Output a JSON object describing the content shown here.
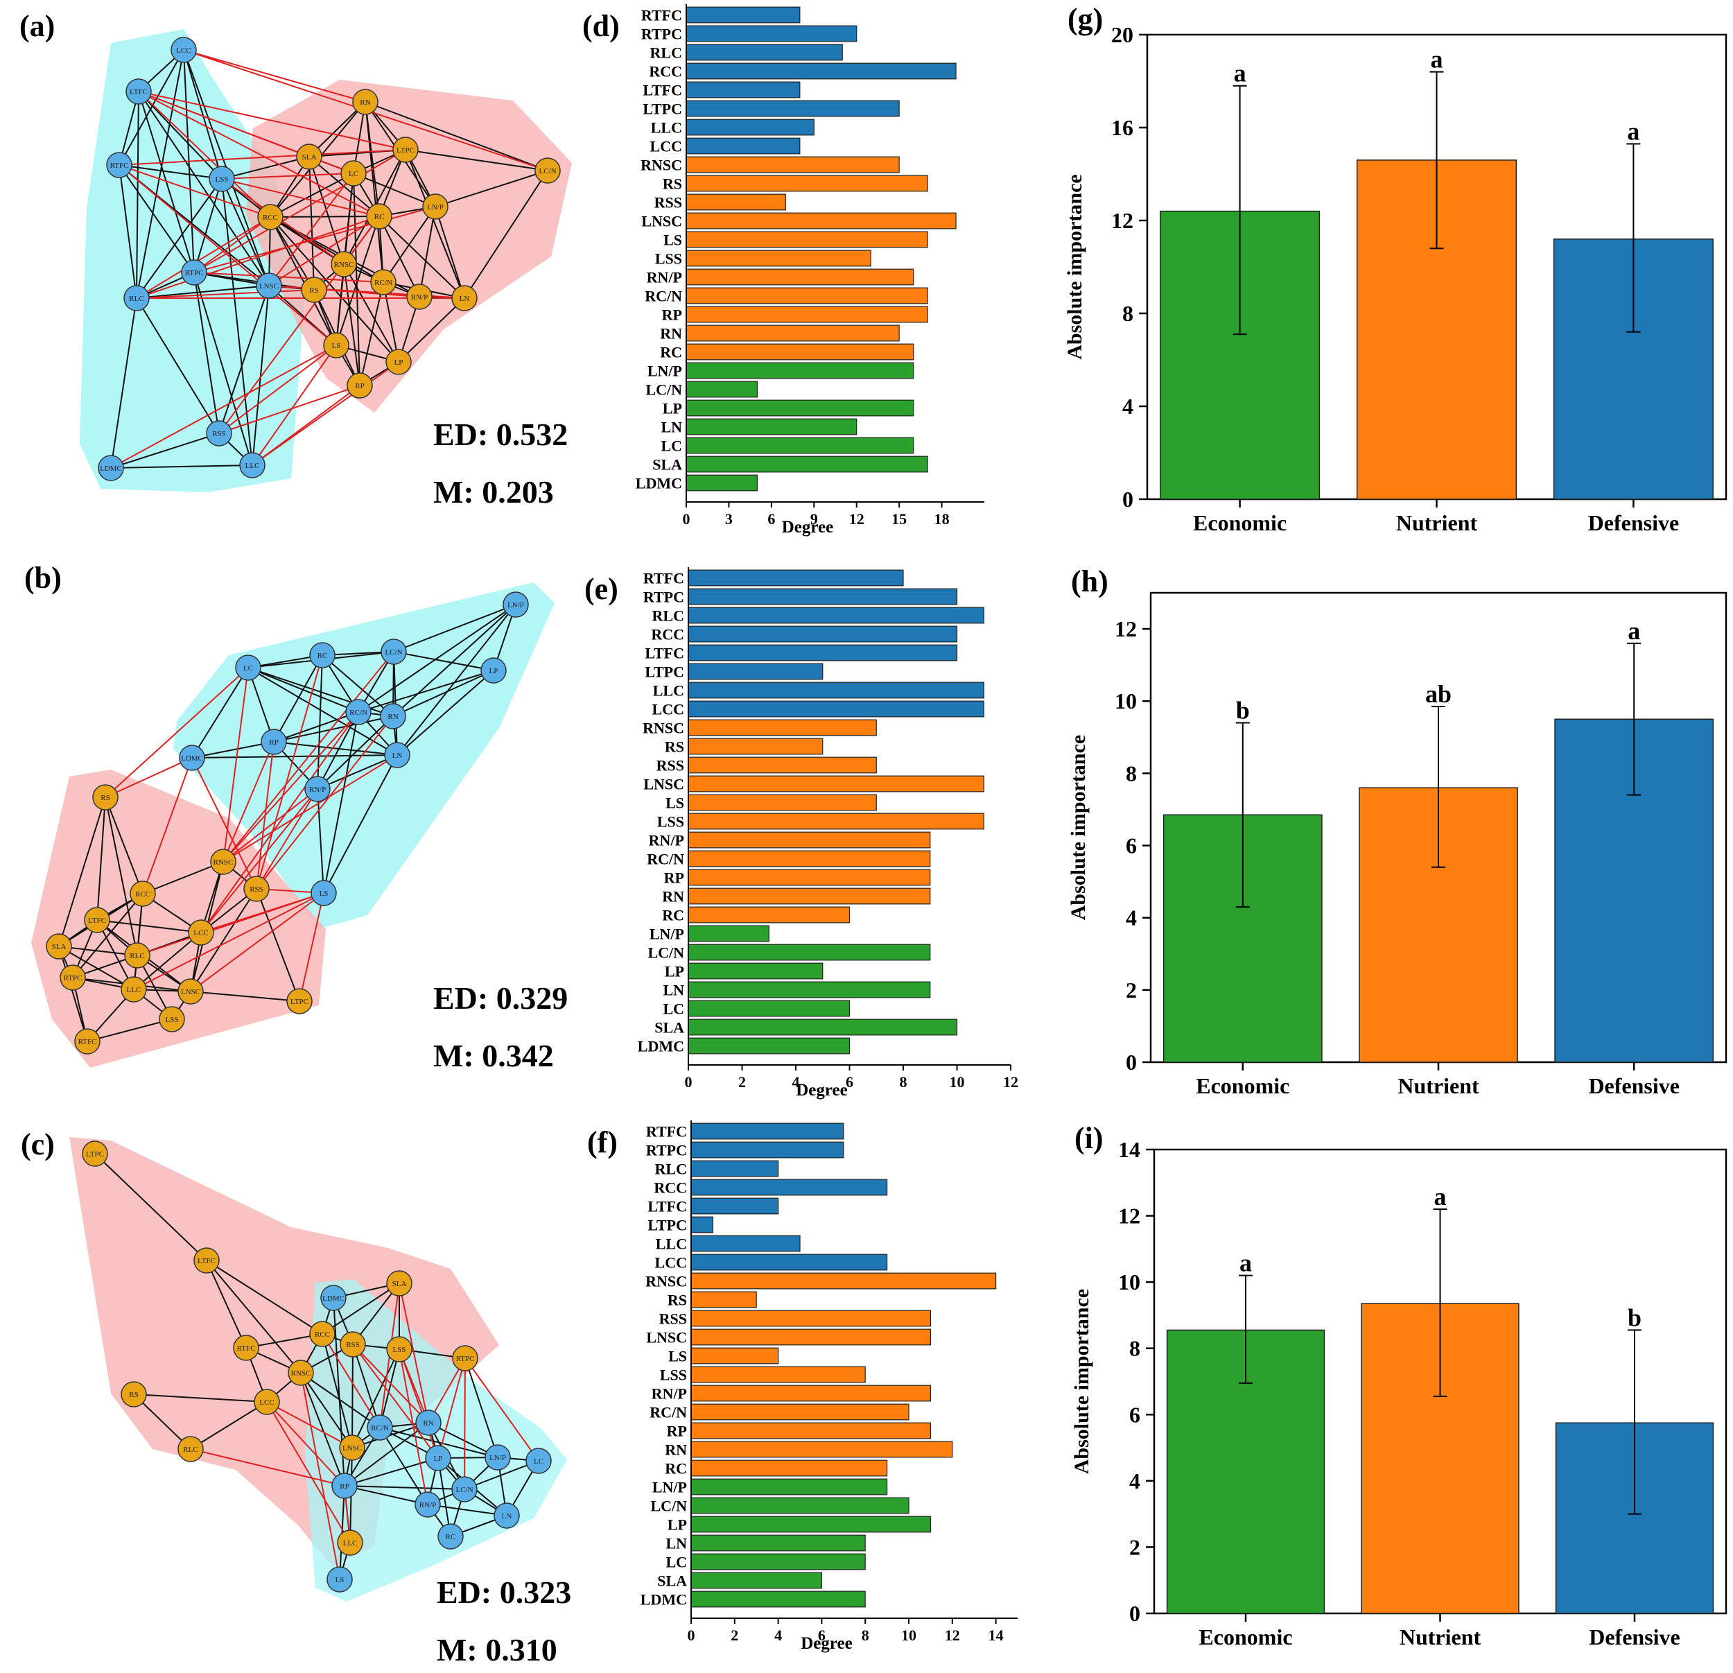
{
  "colors": {
    "economic": "#2ca02c",
    "nutrient": "#ff7f0e",
    "defensive": "#1f77b4",
    "node_blue": "#5aaee8",
    "node_orange": "#e8a317",
    "hull_cyan": "#a6f5f5",
    "hull_red": "#f8b4b4",
    "edge_pos": "#111111",
    "edge_neg": "#e02020"
  },
  "traits": [
    "RTFC",
    "RTPC",
    "RLC",
    "RCC",
    "LTFC",
    "LTPC",
    "LLC",
    "LCC",
    "RNSC",
    "RS",
    "RSS",
    "LNSC",
    "LS",
    "LSS",
    "RN/P",
    "RC/N",
    "RP",
    "RN",
    "RC",
    "LN/P",
    "LC/N",
    "LP",
    "LN",
    "LC",
    "SLA",
    "LDMC"
  ],
  "trait_groups": [
    "defensive",
    "defensive",
    "defensive",
    "defensive",
    "defensive",
    "defensive",
    "defensive",
    "defensive",
    "nutrient",
    "nutrient",
    "nutrient",
    "nutrient",
    "nutrient",
    "nutrient",
    "nutrient",
    "nutrient",
    "nutrient",
    "nutrient",
    "nutrient",
    "economic",
    "economic",
    "economic",
    "economic",
    "economic",
    "economic",
    "economic"
  ],
  "networks": [
    {
      "label": "(a)",
      "ed_text": "ED: 0.532",
      "m_text": "M: 0.203"
    },
    {
      "label": "(b)",
      "ed_text": "ED: 0.329",
      "m_text": "M: 0.342"
    },
    {
      "label": "(c)",
      "ed_text": "ED: 0.323",
      "m_text": "M: 0.310"
    }
  ],
  "chart_data": [
    {
      "type": "bar",
      "orientation": "horizontal",
      "panel": "(d)",
      "xlabel": "Degree",
      "xlim": [
        0,
        21
      ],
      "xticks": [
        0,
        3,
        6,
        9,
        12,
        15,
        18
      ],
      "values": [
        8,
        12,
        11,
        19,
        8,
        15,
        9,
        8,
        15,
        17,
        7,
        19,
        17,
        13,
        16,
        17,
        17,
        15,
        16,
        16,
        5,
        16,
        12,
        16,
        17,
        5
      ]
    },
    {
      "type": "bar",
      "orientation": "horizontal",
      "panel": "(e)",
      "xlabel": "Degree",
      "xlim": [
        0,
        12
      ],
      "xticks": [
        0,
        2,
        4,
        6,
        8,
        10,
        12
      ],
      "values": [
        8,
        10,
        11,
        10,
        10,
        5,
        11,
        11,
        7,
        5,
        7,
        11,
        7,
        11,
        9,
        9,
        9,
        9,
        6,
        3,
        9,
        5,
        9,
        6,
        10,
        6
      ]
    },
    {
      "type": "bar",
      "orientation": "horizontal",
      "panel": "(f)",
      "xlabel": "Degree",
      "xlim": [
        0,
        15
      ],
      "xticks": [
        0,
        2,
        4,
        6,
        8,
        10,
        12,
        14
      ],
      "values": [
        7,
        7,
        4,
        9,
        4,
        1,
        5,
        9,
        14,
        3,
        11,
        11,
        4,
        8,
        11,
        10,
        11,
        12,
        9,
        9,
        10,
        11,
        8,
        8,
        6,
        8
      ]
    },
    {
      "type": "bar",
      "panel": "(g)",
      "ylabel": "Absolute importance",
      "ylim": [
        0,
        20
      ],
      "yticks": [
        0,
        4,
        8,
        12,
        16,
        20
      ],
      "categories": [
        "Economic",
        "Nutrient",
        "Defensive"
      ],
      "values": [
        12.4,
        14.6,
        11.2
      ],
      "err_low": [
        7.1,
        10.8,
        7.2
      ],
      "err_high": [
        17.8,
        18.4,
        15.3
      ],
      "letters": [
        "a",
        "a",
        "a"
      ]
    },
    {
      "type": "bar",
      "panel": "(h)",
      "ylabel": "Absolute importance",
      "ylim": [
        0,
        13
      ],
      "yticks": [
        0,
        2,
        4,
        6,
        8,
        10,
        12
      ],
      "categories": [
        "Economic",
        "Nutrient",
        "Defensive"
      ],
      "values": [
        6.85,
        7.6,
        9.5
      ],
      "err_low": [
        4.3,
        5.4,
        7.4
      ],
      "err_high": [
        9.4,
        9.85,
        11.6
      ],
      "letters": [
        "b",
        "ab",
        "a"
      ]
    },
    {
      "type": "bar",
      "panel": "(i)",
      "ylabel": "Absolute importance",
      "ylim": [
        0,
        14
      ],
      "yticks": [
        0,
        2,
        4,
        6,
        8,
        10,
        12,
        14
      ],
      "categories": [
        "Economic",
        "Nutrient",
        "Defensive"
      ],
      "values": [
        8.55,
        9.35,
        5.75
      ],
      "err_low": [
        6.95,
        6.55,
        3.0
      ],
      "err_high": [
        10.2,
        12.2,
        8.55
      ],
      "letters": [
        "a",
        "a",
        "b"
      ]
    }
  ]
}
